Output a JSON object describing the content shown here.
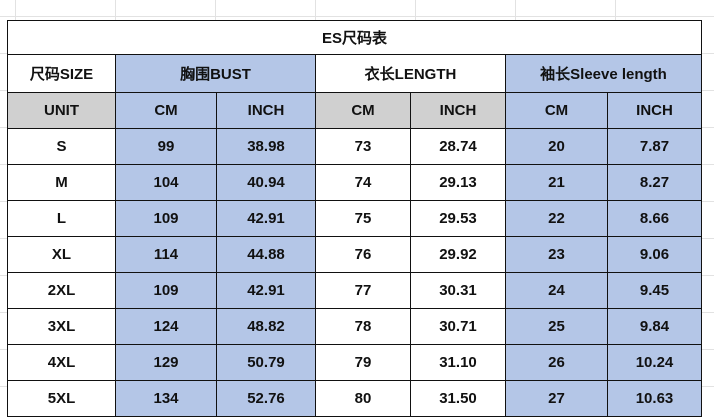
{
  "title": "ES尺码表",
  "header": {
    "size": "尺码SIZE",
    "bust": "胸围BUST",
    "length": "衣长LENGTH",
    "sleeve": "袖长Sleeve length"
  },
  "units": {
    "label": "UNIT",
    "cm": "CM",
    "inch": "INCH"
  },
  "colors": {
    "blue": "#b4c6e7",
    "gray": "#d0d0d0"
  },
  "rows": [
    [
      "S",
      "99",
      "38.98",
      "73",
      "28.74",
      "20",
      "7.87"
    ],
    [
      "M",
      "104",
      "40.94",
      "74",
      "29.13",
      "21",
      "8.27"
    ],
    [
      "L",
      "109",
      "42.91",
      "75",
      "29.53",
      "22",
      "8.66"
    ],
    [
      "XL",
      "114",
      "44.88",
      "76",
      "29.92",
      "23",
      "9.06"
    ],
    [
      "2XL",
      "109",
      "42.91",
      "77",
      "30.31",
      "24",
      "9.45"
    ],
    [
      "3XL",
      "124",
      "48.82",
      "78",
      "30.71",
      "25",
      "9.84"
    ],
    [
      "4XL",
      "129",
      "50.79",
      "79",
      "31.10",
      "26",
      "10.24"
    ],
    [
      "5XL",
      "134",
      "52.76",
      "80",
      "31.50",
      "27",
      "10.63"
    ]
  ]
}
